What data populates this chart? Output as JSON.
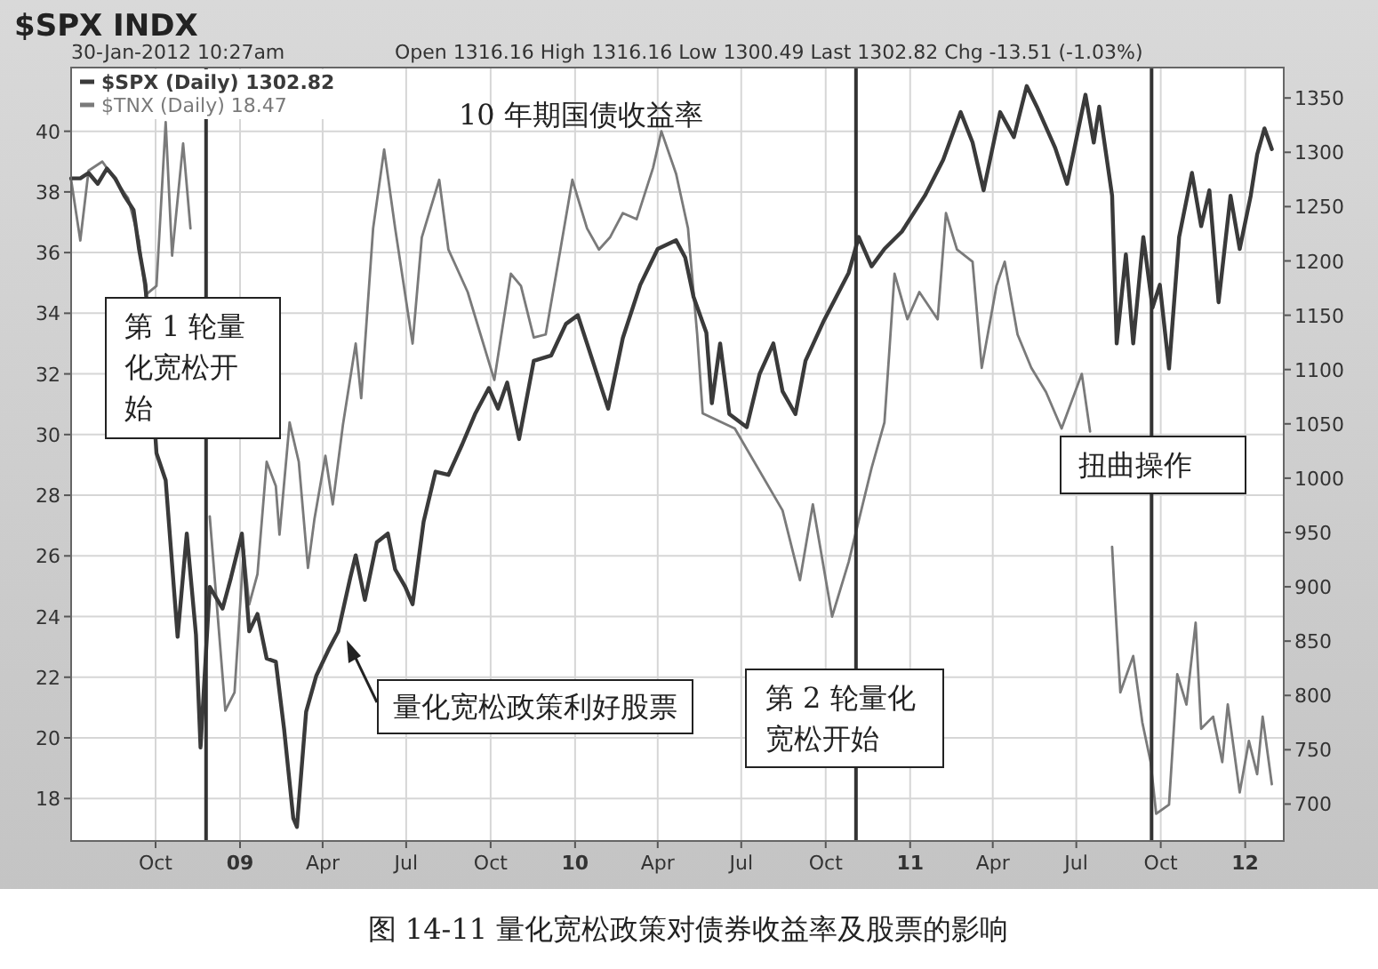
{
  "chart_data": {
    "type": "line",
    "title": "$SPX INDX",
    "subtitle": "30-Jan-2012 10:27am",
    "annotations": [
      "Open 1316.16 High 1316.16 Low 1300.49 Last 1302.82 Chg -13.51 (-1.03%)",
      "10 年期国债收益率",
      "量化宽松政策利好股票",
      "图 14-11 量化宽松政策对债券收益率及股票的影响"
    ],
    "xlim": [
      "2008-07-01",
      "2012-02-12"
    ],
    "xticks": [
      {
        "value": "2008-10-01",
        "label": "Oct"
      },
      {
        "value": "2009-01-01",
        "label": "09"
      },
      {
        "value": "2009-04-01",
        "label": "Apr"
      },
      {
        "value": "2009-07-01",
        "label": "Jul"
      },
      {
        "value": "2009-10-01",
        "label": "Oct"
      },
      {
        "value": "2010-01-01",
        "label": "10"
      },
      {
        "value": "2010-04-01",
        "label": "Apr"
      },
      {
        "value": "2010-07-01",
        "label": "Jul"
      },
      {
        "value": "2010-10-01",
        "label": "Oct"
      },
      {
        "value": "2011-01-01",
        "label": "11"
      },
      {
        "value": "2011-04-01",
        "label": "Apr"
      },
      {
        "value": "2011-07-01",
        "label": "Jul"
      },
      {
        "value": "2011-10-01",
        "label": "Oct"
      },
      {
        "value": "2012-01-01",
        "label": "12"
      }
    ],
    "ylim": [
      16.6,
      42.1
    ],
    "yticks": [
      18,
      20,
      22,
      24,
      26,
      28,
      30,
      32,
      34,
      36,
      38,
      40
    ],
    "y2lim": [
      666,
      1378
    ],
    "y2ticks": [
      700,
      750,
      800,
      850,
      900,
      950,
      1000,
      1050,
      1100,
      1150,
      1200,
      1250,
      1300,
      1350
    ],
    "grid": true,
    "legend": "top left",
    "ref_lines": [
      {
        "axis": "x",
        "value": "2008-11-25",
        "label": "第 1 轮量化宽松开始",
        "color": "#333333"
      },
      {
        "axis": "x",
        "value": "2010-11-03",
        "label": "第 2 轮量化宽松开始",
        "color": "#333333"
      },
      {
        "axis": "x",
        "value": "2011-09-21",
        "label": "扭曲操作",
        "color": "#333333"
      }
    ],
    "series": [
      {
        "name": "$SPX (Daily) 1302.82",
        "color": "#3a3a3a",
        "axis": "y2",
        "x": [
          "2008-07-01",
          "2008-07-11",
          "2008-07-20",
          "2008-07-30",
          "2008-08-09",
          "2008-08-18",
          "2008-08-28",
          "2008-09-07",
          "2008-09-13",
          "2008-09-20",
          "2008-10-02",
          "2008-10-12",
          "2008-10-25",
          "2008-11-04",
          "2008-11-14",
          "2008-11-19",
          "2008-11-29",
          "2008-12-13",
          "2008-12-22",
          "2009-01-03",
          "2009-01-11",
          "2009-01-20",
          "2009-01-30",
          "2009-02-09",
          "2009-02-18",
          "2009-02-28",
          "2009-03-04",
          "2009-03-14",
          "2009-03-25",
          "2009-04-08",
          "2009-04-18",
          "2009-05-01",
          "2009-05-07",
          "2009-05-17",
          "2009-05-30",
          "2009-06-11",
          "2009-06-19",
          "2009-06-30",
          "2009-07-08",
          "2009-07-20",
          "2009-08-02",
          "2009-08-16",
          "2009-08-31",
          "2009-09-14",
          "2009-09-29",
          "2009-10-09",
          "2009-10-19",
          "2009-11-01",
          "2009-11-17",
          "2009-12-06",
          "2009-12-22",
          "2010-01-04",
          "2010-01-14",
          "2010-02-06",
          "2010-02-22",
          "2010-03-13",
          "2010-04-01",
          "2010-04-21",
          "2010-05-01",
          "2010-05-10",
          "2010-05-24",
          "2010-05-30",
          "2010-06-08",
          "2010-06-18",
          "2010-07-07",
          "2010-07-21",
          "2010-08-05",
          "2010-08-15",
          "2010-08-29",
          "2010-09-09",
          "2010-09-29",
          "2010-10-26",
          "2010-11-06",
          "2010-11-20",
          "2010-12-04",
          "2010-12-23",
          "2011-01-17",
          "2011-02-06",
          "2011-02-25",
          "2011-03-10",
          "2011-03-22",
          "2011-04-09",
          "2011-04-24",
          "2011-05-08",
          "2011-05-19",
          "2011-06-08",
          "2011-06-21",
          "2011-07-11",
          "2011-07-20",
          "2011-07-26",
          "2011-08-09",
          "2011-08-14",
          "2011-08-24",
          "2011-09-01",
          "2011-09-12",
          "2011-09-22",
          "2011-09-30",
          "2011-10-10",
          "2011-10-21",
          "2011-11-04",
          "2011-11-14",
          "2011-11-23",
          "2011-12-03",
          "2011-12-16",
          "2011-12-26",
          "2012-01-07",
          "2012-01-14",
          "2012-01-22",
          "2012-01-30"
        ],
        "values": [
          1276,
          1276,
          1281,
          1271,
          1285,
          1276,
          1260,
          1247,
          1211,
          1178,
          1023,
          998,
          854,
          949,
          856,
          752,
          900,
          880,
          908,
          949,
          859,
          875,
          834,
          831,
          769,
          687,
          679,
          785,
          818,
          843,
          859,
          908,
          929,
          888,
          941,
          949,
          916,
          900,
          884,
          960,
          1006,
          1003,
          1031,
          1059,
          1083,
          1064,
          1088,
          1036,
          1108,
          1113,
          1142,
          1150,
          1124,
          1064,
          1129,
          1178,
          1211,
          1219,
          1203,
          1167,
          1134,
          1069,
          1124,
          1059,
          1047,
          1096,
          1124,
          1080,
          1059,
          1108,
          1145,
          1189,
          1222,
          1195,
          1211,
          1227,
          1260,
          1293,
          1337,
          1309,
          1265,
          1337,
          1314,
          1361,
          1342,
          1304,
          1271,
          1353,
          1309,
          1342,
          1260,
          1124,
          1206,
          1124,
          1222,
          1157,
          1178,
          1101,
          1222,
          1281,
          1232,
          1265,
          1162,
          1260,
          1211,
          1260,
          1298,
          1322,
          1303
        ]
      },
      {
        "name": "$TNX (Daily) 18.47",
        "color": "#7a7a7a",
        "axis": "y",
        "x": [
          "2008-07-01",
          "2008-07-11",
          "2008-07-20",
          "2008-08-04",
          "2008-08-18",
          "2008-09-01",
          "2008-09-13",
          "2008-09-20",
          "2008-10-02",
          "2008-10-12",
          "2008-10-19",
          "2008-10-31",
          "2008-11-08",
          "2008-11-14",
          "2008-11-29",
          "2008-12-16",
          "2008-12-26",
          "2009-01-05",
          "2009-01-11",
          "2009-01-20",
          "2009-01-30",
          "2009-02-09",
          "2009-02-13",
          "2009-02-24",
          "2009-03-06",
          "2009-03-16",
          "2009-03-23",
          "2009-04-04",
          "2009-04-12",
          "2009-04-23",
          "2009-05-07",
          "2009-05-13",
          "2009-05-26",
          "2009-06-07",
          "2009-06-19",
          "2009-07-08",
          "2009-07-18",
          "2009-08-06",
          "2009-08-16",
          "2009-09-06",
          "2009-09-20",
          "2009-10-05",
          "2009-10-23",
          "2009-11-03",
          "2009-11-17",
          "2009-11-30",
          "2009-12-16",
          "2009-12-29",
          "2010-01-14",
          "2010-01-27",
          "2010-02-08",
          "2010-02-22",
          "2010-03-09",
          "2010-03-27",
          "2010-04-05",
          "2010-04-21",
          "2010-05-04",
          "2010-05-14",
          "2010-05-20",
          "2010-06-24",
          "2010-08-15",
          "2010-09-03",
          "2010-09-17",
          "2010-10-08",
          "2010-10-26",
          "2010-11-20",
          "2010-12-04",
          "2010-12-09",
          "2010-12-15",
          "2010-12-29",
          "2011-01-11",
          "2011-01-31",
          "2011-02-09",
          "2011-02-21",
          "2011-03-10",
          "2011-03-20",
          "2011-04-05",
          "2011-04-14",
          "2011-04-28",
          "2011-05-13",
          "2011-05-29",
          "2011-06-15",
          "2011-07-07",
          "2011-07-16",
          "2011-07-26",
          "2011-08-01",
          "2011-08-09",
          "2011-08-12",
          "2011-08-18",
          "2011-09-01",
          "2011-09-11",
          "2011-09-20",
          "2011-09-26",
          "2011-10-10",
          "2011-10-19",
          "2011-10-29",
          "2011-11-08",
          "2011-11-14",
          "2011-11-27",
          "2011-12-07",
          "2011-12-13",
          "2011-12-26",
          "2012-01-05",
          "2012-01-14",
          "2012-01-20",
          "2012-01-30"
        ],
        "values": [
          38.4,
          36.4,
          38.7,
          39.0,
          38.4,
          37.8,
          36.4,
          34.6,
          34.9,
          40.3,
          35.9,
          39.6,
          36.8,
          null,
          27.3,
          20.9,
          21.5,
          26.2,
          24.4,
          25.4,
          29.1,
          28.3,
          26.7,
          30.4,
          29.1,
          25.6,
          27.2,
          29.3,
          27.7,
          30.3,
          33.0,
          31.2,
          36.8,
          39.4,
          36.8,
          33.0,
          36.5,
          38.4,
          36.1,
          34.7,
          33.3,
          31.8,
          35.3,
          34.9,
          33.2,
          33.3,
          36.1,
          38.4,
          36.8,
          36.1,
          36.5,
          37.3,
          37.1,
          38.8,
          40.0,
          38.6,
          36.8,
          33.3,
          30.7,
          30.2,
          27.5,
          25.2,
          27.7,
          24.0,
          25.8,
          28.9,
          30.4,
          32.6,
          35.3,
          33.8,
          34.7,
          33.8,
          37.3,
          36.1,
          35.7,
          32.2,
          34.9,
          35.7,
          33.3,
          32.2,
          31.4,
          30.2,
          32.0,
          30.1,
          null,
          null,
          26.3,
          24.6,
          21.5,
          22.7,
          20.5,
          19.2,
          17.5,
          17.8,
          22.1,
          21.1,
          23.8,
          20.3,
          20.7,
          19.2,
          21.1,
          18.2,
          19.9,
          18.8,
          20.7,
          18.47
        ]
      }
    ]
  }
}
